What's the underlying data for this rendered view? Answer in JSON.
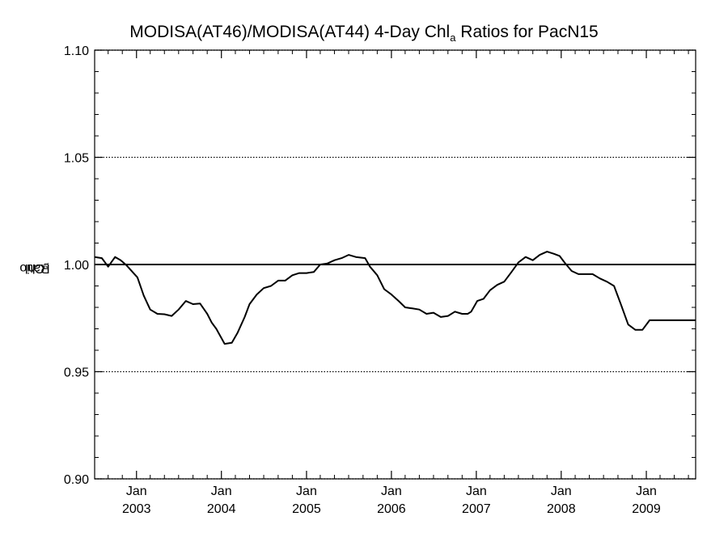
{
  "chart_data": {
    "type": "line",
    "title": {
      "before": "MODISA(AT46)/MODISA(AT44) 4-Day Chl",
      "subscript": "a",
      "after": " Ratios for PacN15"
    },
    "ylabel": {
      "before": "Chl",
      "subscript": "a",
      "after": " Ratio"
    },
    "xlim": [
      "2002-07-05",
      "2009-08-01"
    ],
    "ylim": [
      0.9,
      1.1
    ],
    "y_ticks": [
      "0.90",
      "0.95",
      "1.00",
      "1.05",
      "1.10"
    ],
    "x_ticks": [
      {
        "date": "2003-01-01",
        "month": "Jan",
        "year": "2003"
      },
      {
        "date": "2004-01-01",
        "month": "Jan",
        "year": "2004"
      },
      {
        "date": "2005-01-01",
        "month": "Jan",
        "year": "2005"
      },
      {
        "date": "2006-01-01",
        "month": "Jan",
        "year": "2006"
      },
      {
        "date": "2007-01-01",
        "month": "Jan",
        "year": "2007"
      },
      {
        "date": "2008-01-01",
        "month": "Jan",
        "year": "2008"
      },
      {
        "date": "2009-01-01",
        "month": "Jan",
        "year": "2009"
      }
    ],
    "grid": "dotted horizontal at major ticks",
    "reference_line": 1.0,
    "series": [
      {
        "x": [
          "2002-07-05",
          "2002-08-05",
          "2002-09-01",
          "2002-10-01",
          "2002-10-25",
          "2002-11-20",
          "2002-12-15",
          "2003-01-05",
          "2003-02-01",
          "2003-03-01",
          "2003-04-01",
          "2003-05-01",
          "2003-06-01",
          "2003-07-01",
          "2003-08-01",
          "2003-09-01",
          "2003-10-01",
          "2003-11-01",
          "2003-11-20",
          "2003-12-10",
          "2004-01-15",
          "2004-02-15",
          "2004-03-10",
          "2004-04-10",
          "2004-05-01",
          "2004-06-01",
          "2004-07-01",
          "2004-08-01",
          "2004-09-01",
          "2004-10-01",
          "2004-11-01",
          "2004-12-01",
          "2005-01-01",
          "2005-02-01",
          "2005-03-01",
          "2005-04-01",
          "2005-05-01",
          "2005-06-01",
          "2005-07-01",
          "2005-08-01",
          "2005-09-10",
          "2005-10-01",
          "2005-11-01",
          "2005-12-01",
          "2006-01-01",
          "2006-02-01",
          "2006-03-01",
          "2006-04-01",
          "2006-05-01",
          "2006-06-01",
          "2006-07-01",
          "2006-08-01",
          "2006-09-01",
          "2006-10-01",
          "2006-11-01",
          "2006-11-25",
          "2006-12-10",
          "2007-01-05",
          "2007-02-01",
          "2007-03-01",
          "2007-04-01",
          "2007-05-01",
          "2007-06-01",
          "2007-07-01",
          "2007-08-01",
          "2007-09-01",
          "2007-10-01",
          "2007-11-01",
          "2007-12-01",
          "2007-12-25",
          "2008-01-15",
          "2008-02-15",
          "2008-03-15",
          "2008-04-15",
          "2008-05-15",
          "2008-06-15",
          "2008-07-15",
          "2008-08-15",
          "2008-09-15",
          "2008-10-15",
          "2008-11-15",
          "2008-12-15",
          "2009-01-15",
          "2009-02-15",
          "2009-03-15",
          "2009-04-15",
          "2009-05-15",
          "2009-06-15",
          "2009-08-01"
        ],
        "values": [
          1.0035,
          1.003,
          0.999,
          1.0035,
          1.002,
          0.9995,
          0.9965,
          0.994,
          0.9855,
          0.979,
          0.977,
          0.9768,
          0.976,
          0.979,
          0.983,
          0.9815,
          0.9818,
          0.977,
          0.973,
          0.97,
          0.963,
          0.9635,
          0.968,
          0.9755,
          0.9815,
          0.986,
          0.989,
          0.99,
          0.9925,
          0.9925,
          0.995,
          0.996,
          0.996,
          0.9965,
          1.0,
          1.0005,
          1.002,
          1.003,
          1.0045,
          1.0035,
          1.003,
          0.999,
          0.995,
          0.9885,
          0.986,
          0.983,
          0.98,
          0.9795,
          0.979,
          0.977,
          0.9775,
          0.9755,
          0.976,
          0.978,
          0.977,
          0.977,
          0.978,
          0.983,
          0.984,
          0.988,
          0.9905,
          0.992,
          0.9965,
          1.001,
          1.0035,
          1.002,
          1.0045,
          1.006,
          1.005,
          1.004,
          1.001,
          0.997,
          0.9955,
          0.9955,
          0.9955,
          0.9935,
          0.992,
          0.99,
          0.981,
          0.972,
          0.9695,
          0.9695,
          0.974,
          0.974,
          0.974,
          0.974,
          0.974,
          0.974,
          0.974
        ]
      }
    ]
  }
}
